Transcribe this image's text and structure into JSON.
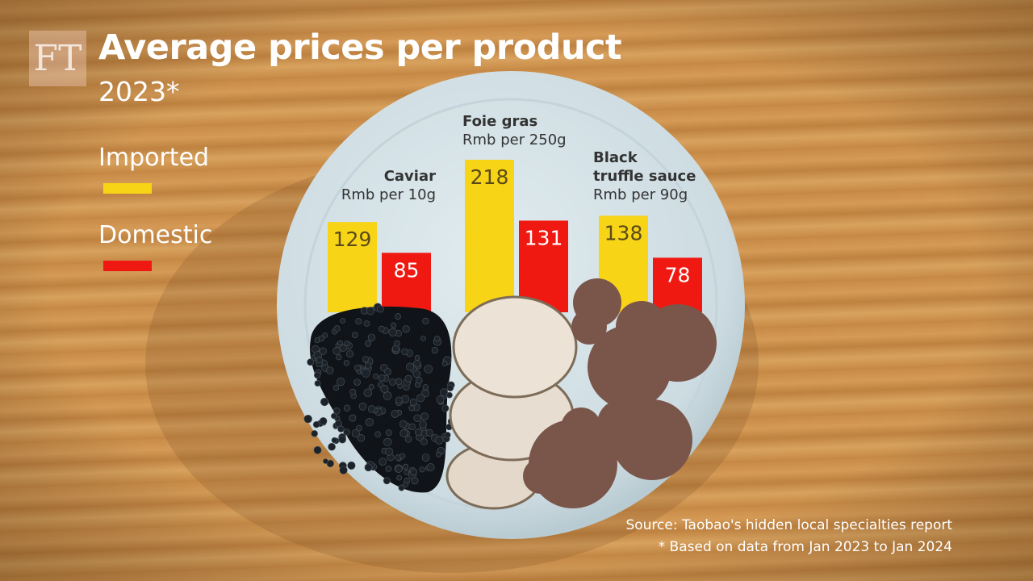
{
  "logo": "FT",
  "chart_data": {
    "type": "bar",
    "title": "Average prices per product",
    "subtitle": "2023*",
    "categories": [
      "Caviar",
      "Foie gras",
      "Black\ntruffle sauce"
    ],
    "units": [
      "Rmb per 10g",
      "Rmb per 250g",
      "Rmb per 90g"
    ],
    "series": [
      {
        "name": "Imported",
        "color": "#f8d417",
        "values": [
          129,
          218,
          138
        ]
      },
      {
        "name": "Domestic",
        "color": "#f01912",
        "values": [
          85,
          131,
          78
        ]
      }
    ],
    "source": "Source: Taobao's hidden local specialties report",
    "note": "* Based on data from Jan 2023 to Jan 2024"
  }
}
